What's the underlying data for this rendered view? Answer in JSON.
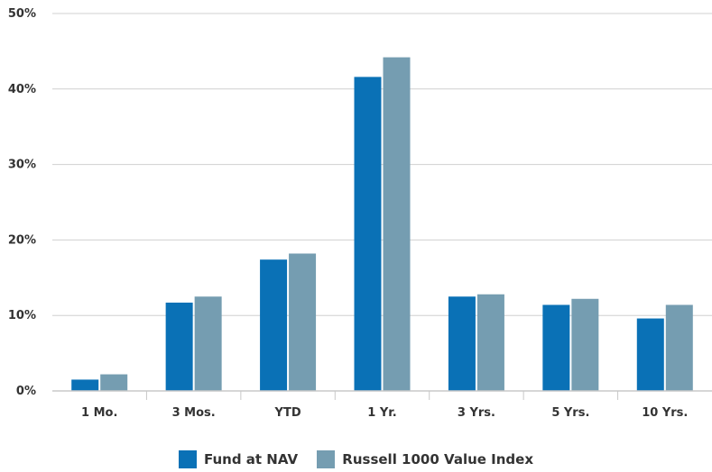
{
  "chart_data": {
    "type": "bar",
    "categories": [
      "1 Mo.",
      "3 Mos.",
      "YTD",
      "1 Yr.",
      "3 Yrs.",
      "5 Yrs.",
      "10 Yrs."
    ],
    "series": [
      {
        "name": "Fund at NAV",
        "color": "#0a71b6",
        "values": [
          1.5,
          11.7,
          17.4,
          41.6,
          12.5,
          11.4,
          9.6
        ]
      },
      {
        "name": "Russell 1000 Value Index",
        "color": "#759db1",
        "values": [
          2.2,
          12.5,
          18.2,
          44.2,
          12.8,
          12.2,
          11.4
        ]
      }
    ],
    "y_ticks": [
      "0%",
      "10%",
      "20%",
      "30%",
      "40%",
      "50%"
    ],
    "ylim": [
      0,
      50
    ],
    "grid": true,
    "legend_position": "bottom-center"
  }
}
